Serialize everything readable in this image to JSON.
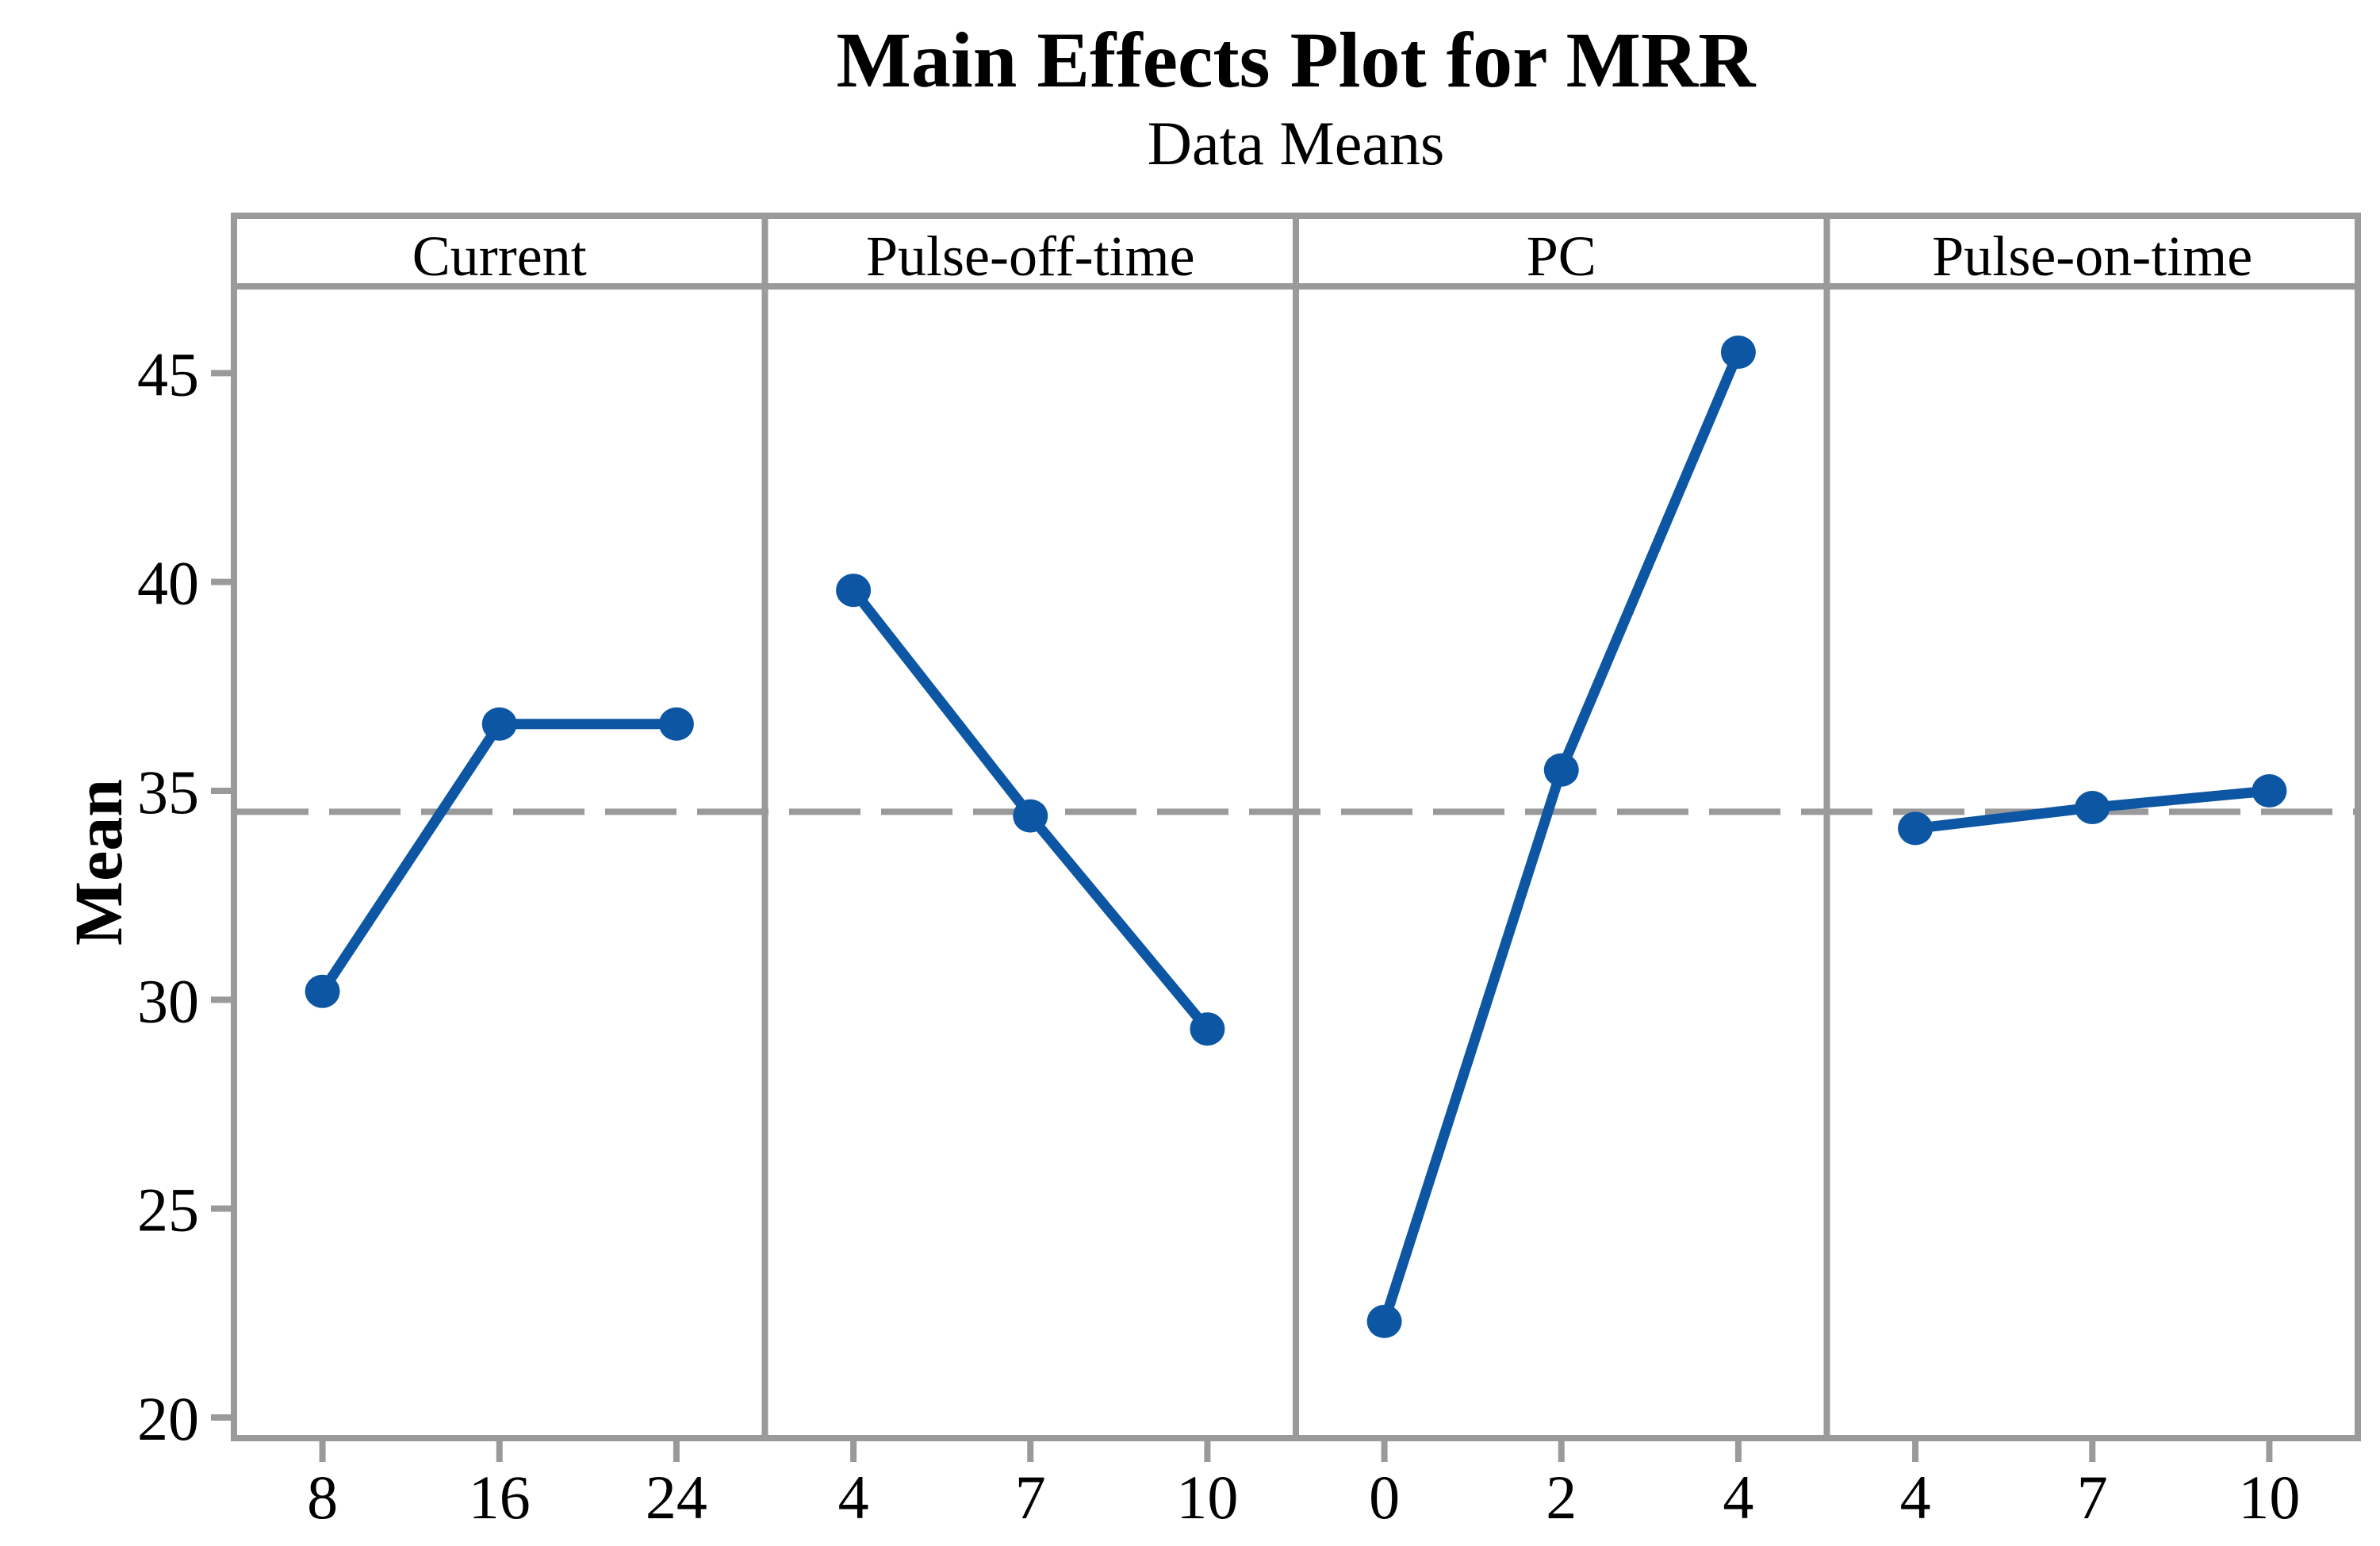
{
  "chart_data": {
    "type": "line",
    "title": "Main Effects Plot for MRR",
    "subtitle": "Data Means",
    "ylabel": "Mean",
    "yticks": [
      20,
      25,
      30,
      35,
      40,
      45
    ],
    "ylim": [
      19.5,
      47.1
    ],
    "reference_line_mean": 34.5,
    "grid": "off",
    "legend": "none",
    "panels": [
      {
        "label": "Current",
        "categories": [
          "8",
          "16",
          "24"
        ],
        "values": [
          30.2,
          36.6,
          36.6
        ]
      },
      {
        "label": "Pulse-off-time",
        "categories": [
          "4",
          "7",
          "10"
        ],
        "values": [
          39.8,
          34.4,
          29.3
        ]
      },
      {
        "label": "PC",
        "categories": [
          "0",
          "2",
          "4"
        ],
        "values": [
          22.3,
          35.5,
          45.5
        ]
      },
      {
        "label": "Pulse-on-time",
        "categories": [
          "4",
          "7",
          "10"
        ],
        "values": [
          34.1,
          34.6,
          35.0
        ]
      }
    ],
    "colors": {
      "series": "#0D56A4",
      "frame": "#9A9A9A",
      "reference": "#9A9A9A",
      "text": "#000000",
      "background": "#FFFFFF"
    }
  }
}
